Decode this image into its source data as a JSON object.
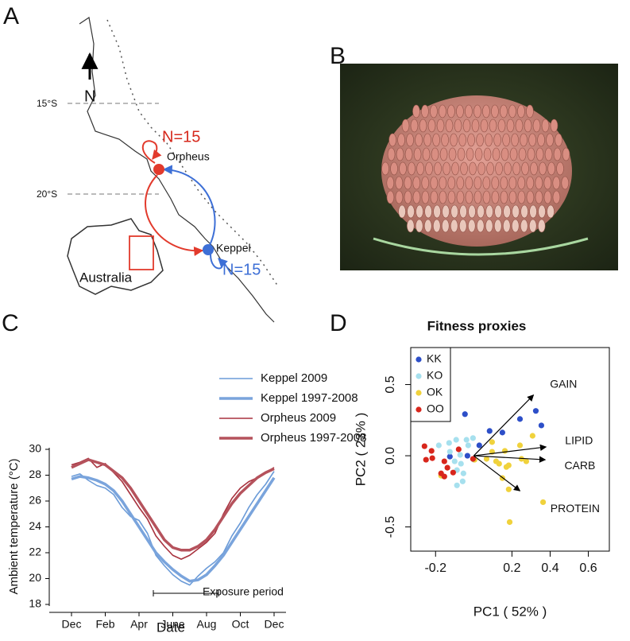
{
  "map": {
    "panel": "A",
    "north": "N",
    "lat_labels": [
      "15°S",
      "20°S"
    ],
    "sites": [
      {
        "name": "Orpheus",
        "n": "N=15"
      },
      {
        "name": "Keppel",
        "n": "N=15"
      }
    ],
    "country": "Australia"
  },
  "photo": {
    "panel": "B"
  },
  "chart_data": [
    {
      "type": "line",
      "panel": "C",
      "xlabel": "Date",
      "ylabel": "Ambient temperature (°C)",
      "annotation": "Exposure period",
      "categories": [
        "Dec",
        null,
        null,
        null,
        "Feb",
        null,
        null,
        null,
        "Apr",
        null,
        null,
        null,
        "June",
        null,
        null,
        null,
        "Aug",
        null,
        null,
        null,
        "Oct",
        null,
        null,
        null,
        "Dec"
      ],
      "ylim": [
        18,
        30
      ],
      "yticks": [
        18,
        20,
        22,
        24,
        26,
        28,
        30
      ],
      "series": [
        {
          "name": "Keppel 2009",
          "color": "#6b9bd8",
          "line_width": 1.6,
          "values": [
            27.9,
            28.1,
            27.6,
            27.2,
            27.0,
            26.5,
            25.5,
            24.8,
            24.5,
            23.5,
            21.8,
            21.0,
            20.3,
            19.8,
            19.5,
            20.2,
            20.8,
            21.3,
            22.0,
            23.3,
            24.3,
            25.5,
            26.5,
            27.3,
            28.3
          ]
        },
        {
          "name": "Keppel 1997-2008",
          "color": "#7aa4dc",
          "line_width": 3.5,
          "values": [
            27.7,
            27.9,
            27.8,
            27.6,
            27.3,
            26.8,
            26.0,
            25.0,
            24.0,
            23.0,
            22.0,
            21.3,
            20.7,
            20.2,
            19.8,
            19.9,
            20.3,
            21.0,
            21.8,
            22.8,
            23.8,
            24.8,
            25.8,
            26.8,
            27.8
          ]
        },
        {
          "name": "Orpheus 2009",
          "color": "#a8323e",
          "line_width": 1.6,
          "values": [
            28.8,
            29.0,
            29.3,
            28.6,
            28.9,
            28.2,
            27.5,
            26.5,
            25.5,
            24.6,
            23.3,
            22.5,
            21.8,
            21.5,
            21.8,
            22.3,
            22.8,
            23.5,
            25.0,
            26.2,
            27.0,
            27.5,
            27.8,
            28.2,
            28.6
          ]
        },
        {
          "name": "Orpheus 1997-2008",
          "color": "#b5525c",
          "line_width": 3.5,
          "values": [
            28.6,
            28.9,
            29.2,
            29.0,
            28.8,
            28.3,
            27.8,
            27.0,
            26.0,
            25.0,
            24.0,
            23.0,
            22.4,
            22.2,
            22.2,
            22.5,
            23.0,
            23.8,
            24.8,
            25.8,
            26.6,
            27.2,
            27.8,
            28.2,
            28.5
          ]
        }
      ]
    },
    {
      "type": "scatter",
      "panel": "D",
      "title": "Fitness proxies",
      "xlabel": "PC1 ( 52% )",
      "ylabel": "PC2 ( 23% )",
      "xlim": [
        -0.33,
        0.71
      ],
      "ylim": [
        -0.67,
        0.76
      ],
      "xticks": [
        -0.2,
        0.2,
        0.4,
        0.6
      ],
      "yticks": [
        -0.5,
        {
          "value": 0,
          "label": "0.0"
        },
        0.5
      ],
      "series": [
        {
          "name": "KK",
          "color": "#2d4fc8",
          "x": [
            -0.046,
            0.083,
            0.15,
            0.242,
            0.325,
            0.354,
            0.029,
            -0.033,
            -0.125
          ],
          "y": [
            0.292,
            0.174,
            0.163,
            0.258,
            0.315,
            0.213,
            0.073,
            0,
            -0.006
          ]
        },
        {
          "name": "KO",
          "color": "#a6e0ee",
          "x": [
            -0.129,
            -0.092,
            -0.038,
            -0.004,
            -0.183,
            -0.125,
            -0.071,
            0,
            -0.1,
            -0.067,
            -0.088,
            -0.054,
            -0.088,
            -0.058,
            -0.029
          ],
          "y": [
            0.09,
            0.112,
            0.112,
            0.124,
            0.073,
            0.028,
            0.006,
            -0.028,
            -0.039,
            -0.056,
            -0.101,
            -0.124,
            -0.208,
            -0.18,
            0.073
          ]
        },
        {
          "name": "OK",
          "color": "#f0d23c",
          "x": [
            0.096,
            0.096,
            0.163,
            0.117,
            0.133,
            0.171,
            0.183,
            0.25,
            0.242,
            0.275,
            0.15,
            0.183,
            0.004,
            0.067,
            -0.171,
            0.308,
            0.363,
            0.188
          ],
          "y": [
            0.096,
            0.028,
            0.034,
            -0.039,
            -0.056,
            -0.079,
            -0.067,
            -0.022,
            0.073,
            -0.039,
            -0.157,
            -0.236,
            -0.028,
            -0.022,
            -0.14,
            0.14,
            -0.326,
            -0.466
          ]
        },
        {
          "name": "OO",
          "color": "#d8261c",
          "x": [
            -0.258,
            -0.221,
            -0.217,
            -0.25,
            -0.154,
            -0.138,
            -0.108,
            -0.154,
            -0.171,
            -0.079,
            -0.004
          ],
          "y": [
            0.067,
            0.034,
            -0.017,
            -0.028,
            -0.039,
            -0.084,
            -0.118,
            -0.146,
            -0.124,
            0.045,
            -0.022
          ]
        }
      ],
      "arrows": [
        {
          "name": "GAIN",
          "x": 0.313,
          "y": 0.427
        },
        {
          "name": "LIPID",
          "x": 0.379,
          "y": 0.062
        },
        {
          "name": "CARB",
          "x": 0.375,
          "y": -0.028
        },
        {
          "name": "PROTEIN",
          "x": 0.242,
          "y": -0.247
        }
      ]
    }
  ]
}
